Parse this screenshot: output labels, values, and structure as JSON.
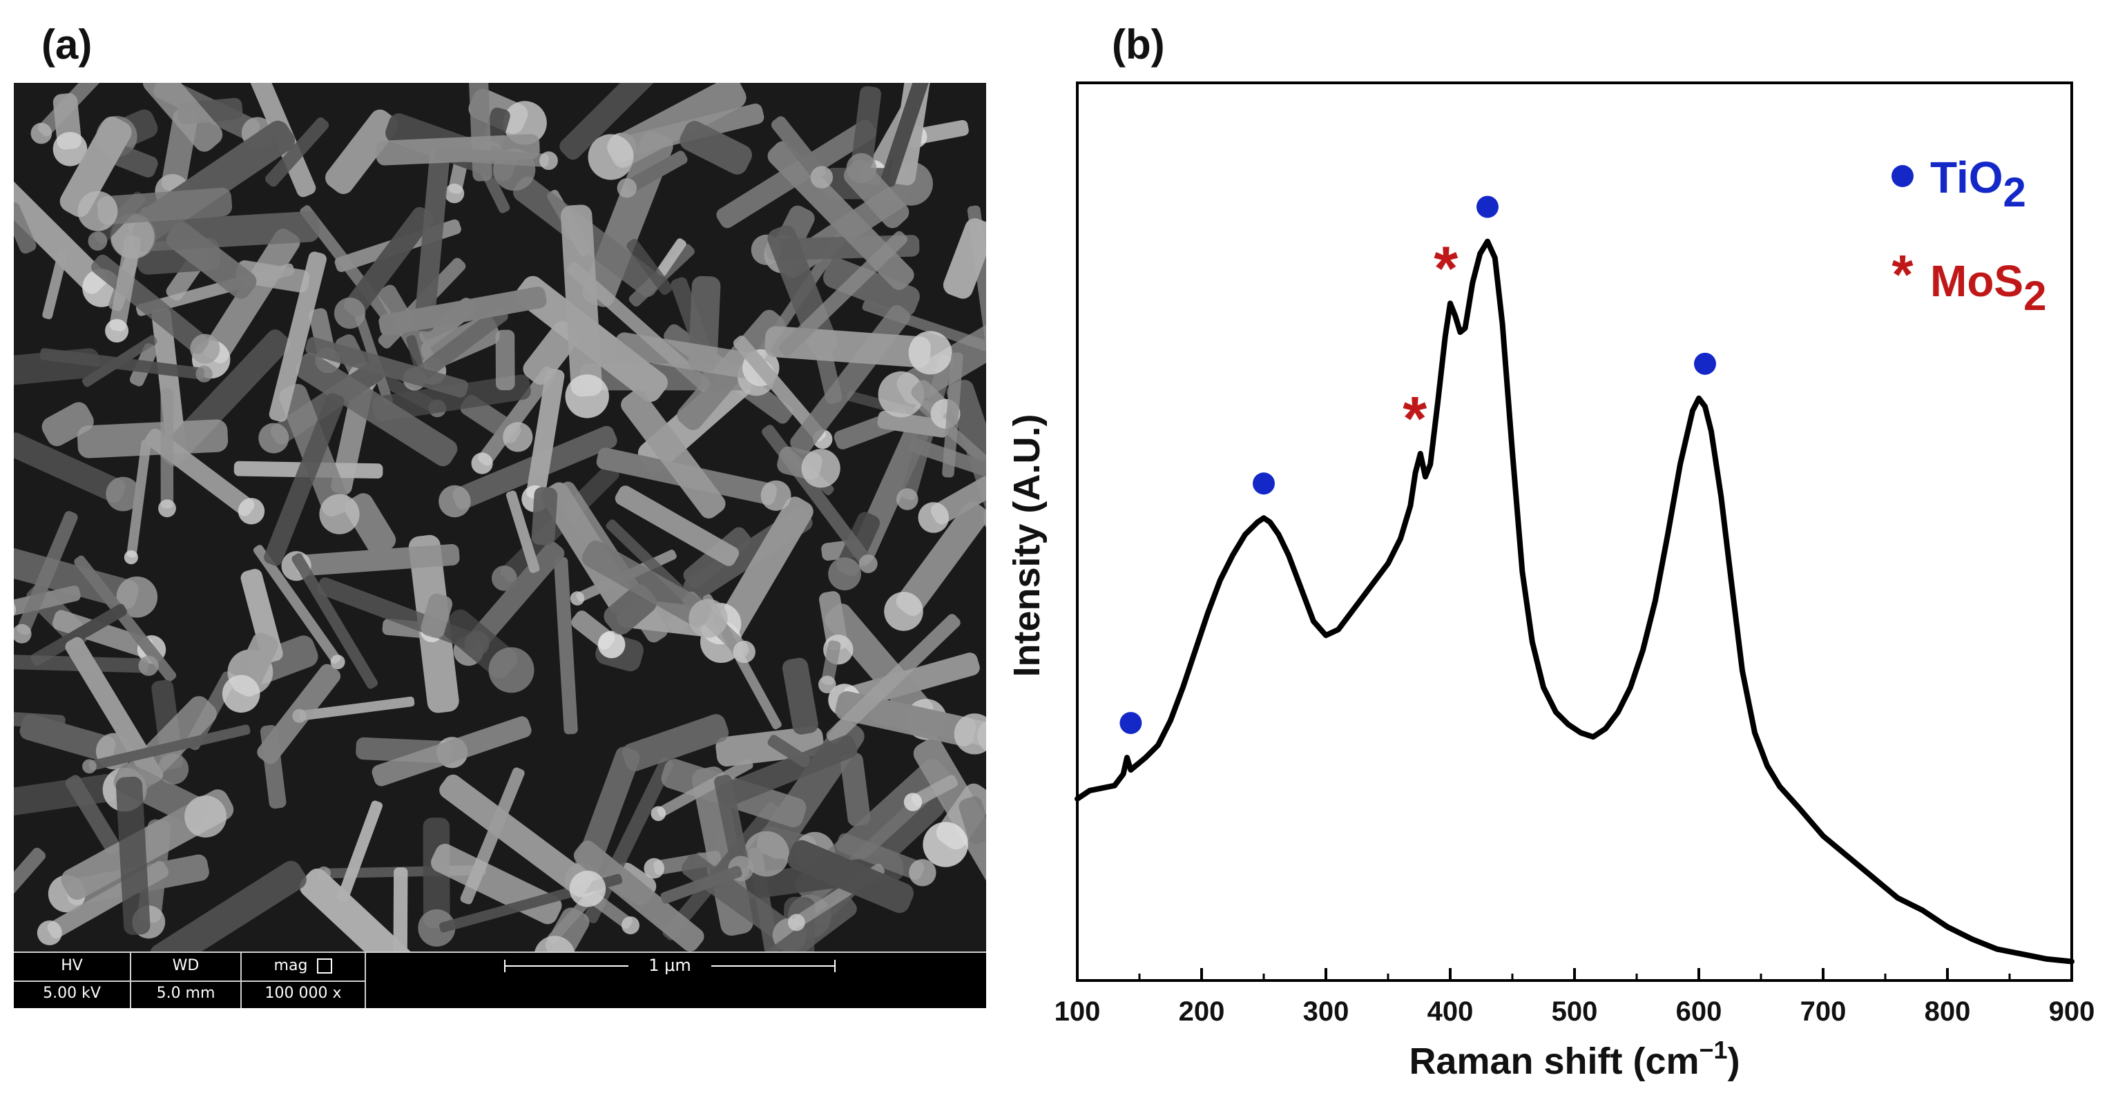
{
  "panels": {
    "a_label": "(a)",
    "b_label": "(b)"
  },
  "sem": {
    "hv_label": "HV",
    "hv_value": "5.00 kV",
    "wd_label": "WD",
    "wd_value": "5.0 mm",
    "mag_label": "mag",
    "mag_value": "100 000 x",
    "scale_label": "1 μm"
  },
  "chart_data": {
    "type": "line",
    "xlabel": "Raman shift (cm",
    "xlabel_sup": "−1",
    "xlabel_end": ")",
    "ylabel": "Intensity (A.U.)",
    "xlim": [
      100,
      900
    ],
    "ylim": [
      0,
      100
    ],
    "xticks": [
      100,
      200,
      300,
      400,
      500,
      600,
      700,
      800,
      900
    ],
    "grid": false,
    "legend_position": "top-right",
    "legend": [
      {
        "marker": "●",
        "text": "TiO",
        "sub": "2",
        "color": "#1428c8"
      },
      {
        "marker": "*",
        "text": "MoS",
        "sub": "2",
        "color": "#c01818"
      }
    ],
    "series": [
      {
        "color": "#000000",
        "x": [
          100,
          110,
          120,
          130,
          137,
          140,
          143,
          147,
          155,
          165,
          175,
          185,
          195,
          205,
          215,
          225,
          235,
          245,
          250,
          255,
          262,
          270,
          280,
          290,
          300,
          310,
          320,
          330,
          340,
          350,
          360,
          368,
          372,
          376,
          380,
          384,
          390,
          396,
          400,
          404,
          408,
          412,
          418,
          424,
          430,
          436,
          442,
          450,
          458,
          466,
          475,
          485,
          495,
          505,
          515,
          525,
          535,
          545,
          555,
          565,
          575,
          585,
          595,
          600,
          605,
          610,
          618,
          626,
          635,
          645,
          655,
          665,
          680,
          700,
          720,
          740,
          760,
          780,
          800,
          820,
          840,
          860,
          880,
          900
        ],
        "y": [
          22.0,
          23.0,
          23.3,
          23.6,
          25.0,
          27.0,
          25.5,
          26.0,
          27.0,
          28.5,
          31.5,
          35.5,
          40.0,
          44.5,
          48.5,
          51.5,
          54.0,
          55.5,
          56.0,
          55.5,
          54.0,
          51.5,
          47.5,
          43.5,
          41.8,
          42.5,
          44.5,
          46.5,
          48.5,
          50.5,
          53.5,
          57.5,
          61.5,
          63.8,
          61.0,
          62.5,
          70.0,
          78.0,
          82.0,
          80.5,
          78.5,
          79.0,
          84.5,
          88.0,
          89.5,
          87.5,
          79.5,
          64.0,
          49.5,
          41.0,
          35.5,
          32.5,
          31.0,
          30.0,
          29.5,
          30.5,
          32.5,
          35.5,
          40.0,
          46.0,
          54.0,
          62.5,
          69.0,
          70.5,
          69.5,
          66.5,
          58.5,
          48.5,
          37.5,
          30.0,
          26.0,
          23.5,
          21.0,
          17.5,
          15.0,
          12.5,
          10.0,
          8.5,
          6.5,
          5.0,
          3.8,
          3.2,
          2.6,
          2.3
        ]
      }
    ],
    "annotations": [
      {
        "marker": "●",
        "x": 143,
        "y": 27.0,
        "color": "#1428c8",
        "label": "TiO2"
      },
      {
        "marker": "●",
        "x": 250,
        "y": 56.0,
        "color": "#1428c8",
        "label": "TiO2"
      },
      {
        "marker": "*",
        "x": 376,
        "y": 63.8,
        "color": "#c01818",
        "label": "MoS2"
      },
      {
        "marker": "*",
        "x": 401,
        "y": 82.0,
        "color": "#c01818",
        "label": "MoS2"
      },
      {
        "marker": "●",
        "x": 430,
        "y": 89.5,
        "color": "#1428c8",
        "label": "TiO2"
      },
      {
        "marker": "●",
        "x": 605,
        "y": 70.5,
        "color": "#1428c8",
        "label": "TiO2"
      }
    ]
  }
}
